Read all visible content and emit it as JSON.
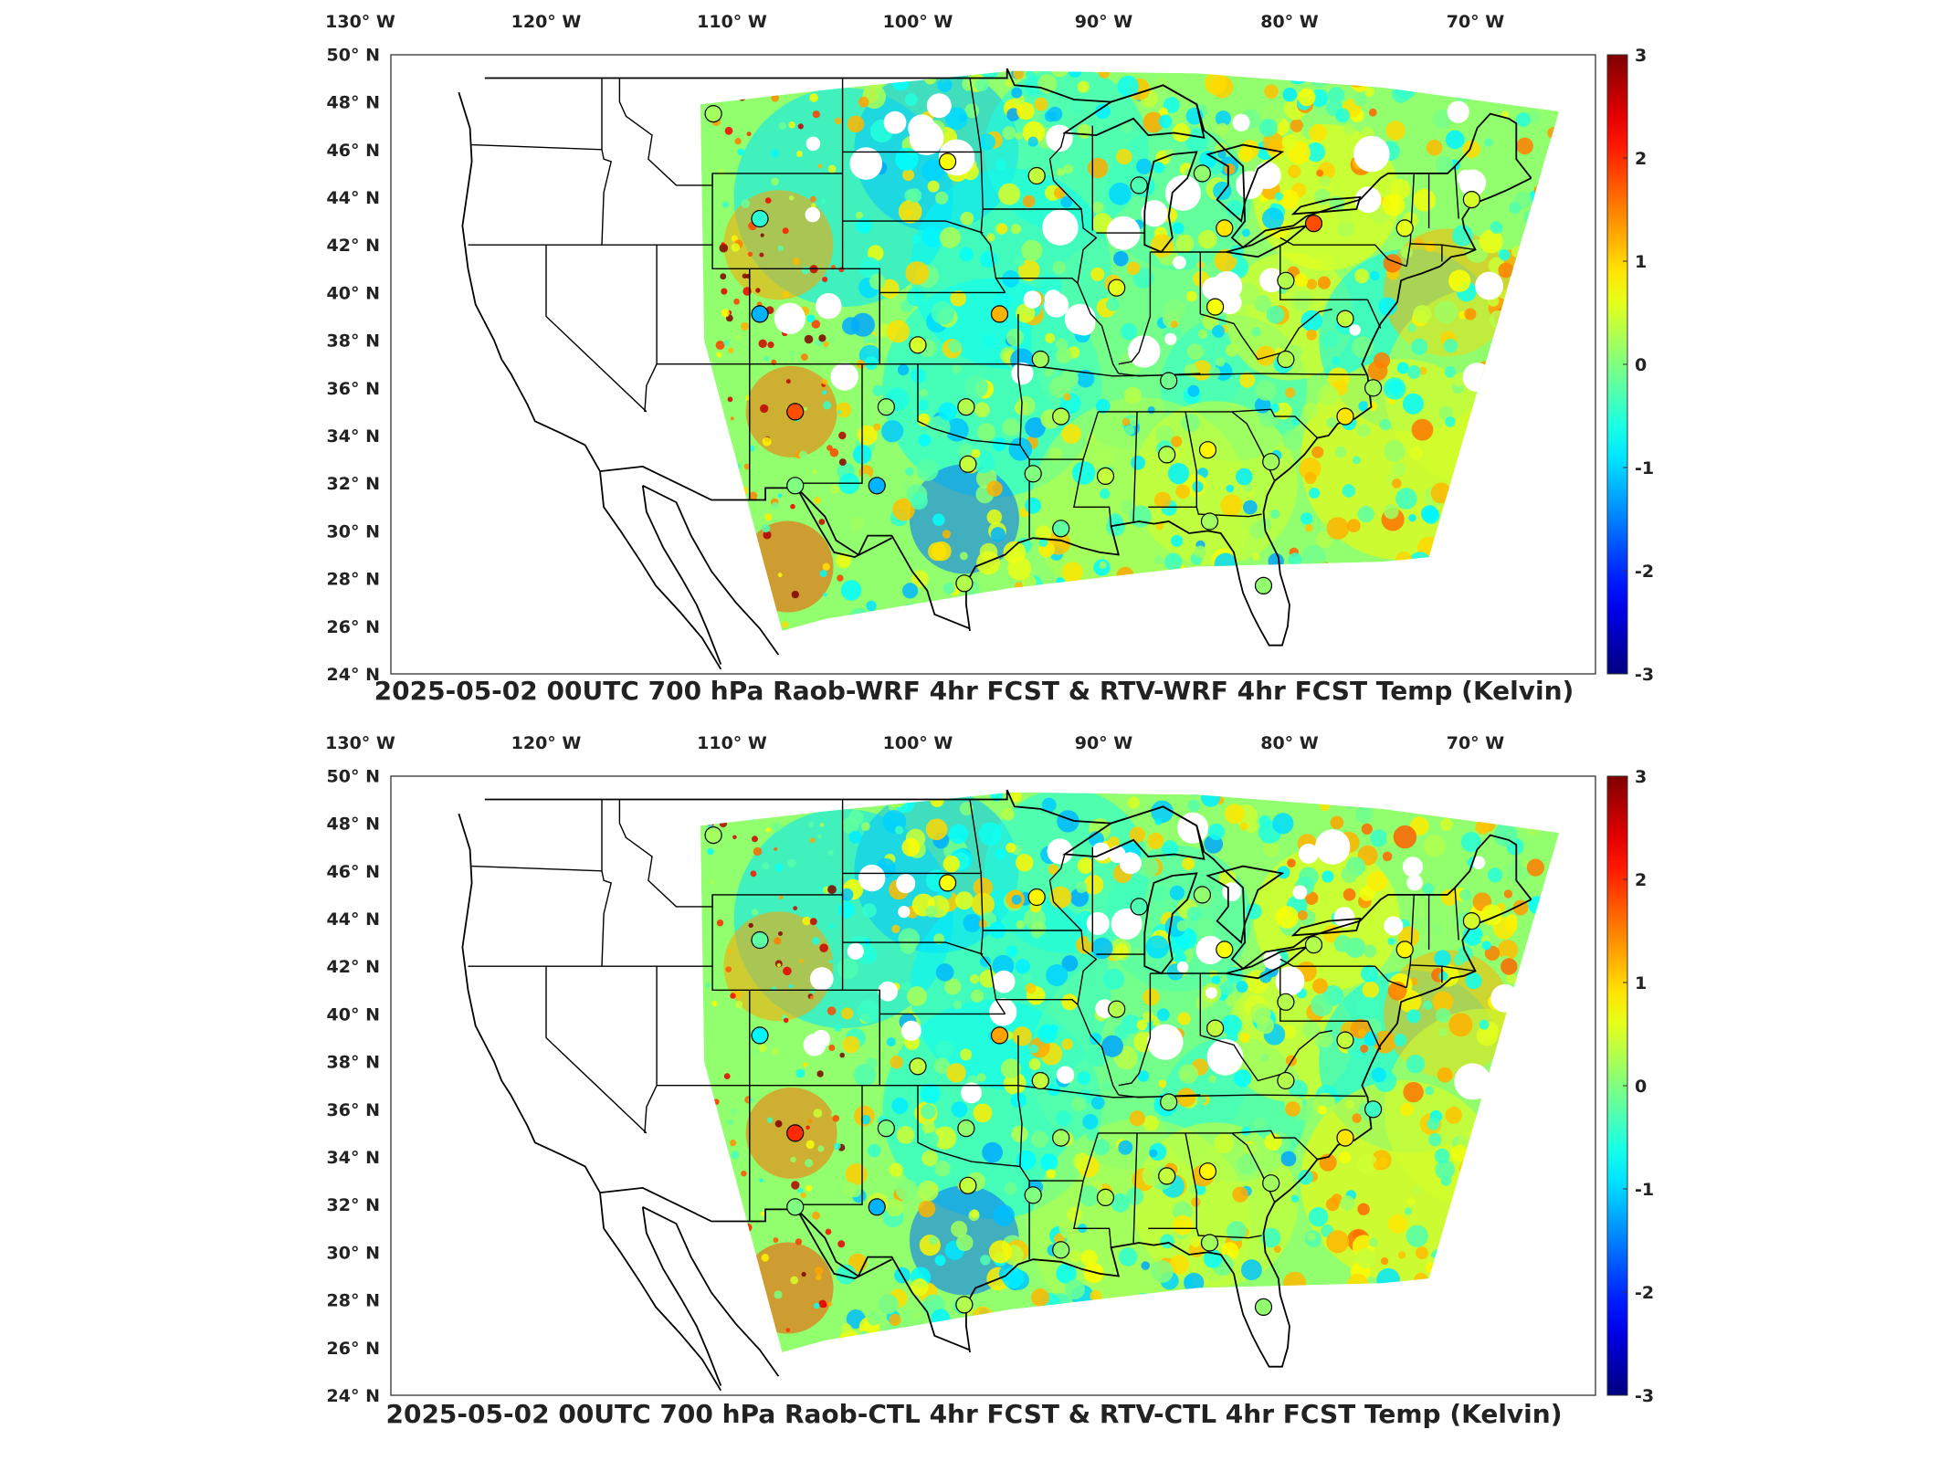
{
  "panels": [
    {
      "title": "2025-05-02 00UTC 700 hPa Raob-WRF 4hr FCST & RTV-WRF 4hr FCST Temp (Kelvin)",
      "seed": 11,
      "stations": [
        {
          "lon": -111.0,
          "lat": 47.5,
          "v": 0.2
        },
        {
          "lon": -98.4,
          "lat": 45.5,
          "v": 0.7
        },
        {
          "lon": -93.6,
          "lat": 44.9,
          "v": 0.4
        },
        {
          "lon": -108.5,
          "lat": 43.1,
          "v": -0.5
        },
        {
          "lon": -88.1,
          "lat": 44.5,
          "v": -0.3
        },
        {
          "lon": -84.7,
          "lat": 45.0,
          "v": 0.1
        },
        {
          "lon": -83.5,
          "lat": 42.7,
          "v": 0.9
        },
        {
          "lon": -78.7,
          "lat": 42.9,
          "v": 1.8
        },
        {
          "lon": -73.8,
          "lat": 42.7,
          "v": 0.6
        },
        {
          "lon": -70.2,
          "lat": 43.9,
          "v": 0.5
        },
        {
          "lon": -108.5,
          "lat": 39.1,
          "v": -1.2
        },
        {
          "lon": -95.6,
          "lat": 39.1,
          "v": 1.2
        },
        {
          "lon": -89.3,
          "lat": 40.2,
          "v": 0.6
        },
        {
          "lon": -84.0,
          "lat": 39.4,
          "v": 0.7
        },
        {
          "lon": -80.2,
          "lat": 40.5,
          "v": 0.3
        },
        {
          "lon": -77.0,
          "lat": 38.9,
          "v": 0.4
        },
        {
          "lon": -100.0,
          "lat": 37.8,
          "v": 0.5
        },
        {
          "lon": -93.4,
          "lat": 37.2,
          "v": 0.2
        },
        {
          "lon": -86.5,
          "lat": 36.3,
          "v": -0.1
        },
        {
          "lon": -80.2,
          "lat": 37.2,
          "v": 0.3
        },
        {
          "lon": -75.5,
          "lat": 36.0,
          "v": 0.2
        },
        {
          "lon": -106.6,
          "lat": 35.0,
          "v": 1.8
        },
        {
          "lon": -101.7,
          "lat": 35.2,
          "v": 0.1
        },
        {
          "lon": -97.4,
          "lat": 35.2,
          "v": 0.3
        },
        {
          "lon": -92.3,
          "lat": 34.8,
          "v": 0.3
        },
        {
          "lon": -77.0,
          "lat": 34.8,
          "v": 0.9
        },
        {
          "lon": -97.3,
          "lat": 32.8,
          "v": 0.4
        },
        {
          "lon": -93.8,
          "lat": 32.4,
          "v": 0.0
        },
        {
          "lon": -89.9,
          "lat": 32.3,
          "v": 0.4
        },
        {
          "lon": -86.6,
          "lat": 33.2,
          "v": 0.3
        },
        {
          "lon": -84.4,
          "lat": 33.4,
          "v": 0.8
        },
        {
          "lon": -81.0,
          "lat": 32.9,
          "v": 0.2
        },
        {
          "lon": -106.6,
          "lat": 31.9,
          "v": 0.0
        },
        {
          "lon": -102.2,
          "lat": 31.9,
          "v": -1.2
        },
        {
          "lon": -92.3,
          "lat": 30.1,
          "v": -0.2
        },
        {
          "lon": -84.3,
          "lat": 30.4,
          "v": 0.2
        },
        {
          "lon": -97.5,
          "lat": 27.8,
          "v": 0.3
        },
        {
          "lon": -81.4,
          "lat": 27.7,
          "v": 0.1
        }
      ]
    },
    {
      "title": "2025-05-02 00UTC 700 hPa Raob-CTL 4hr FCST & RTV-CTL 4hr FCST Temp (Kelvin)",
      "seed": 29,
      "stations": [
        {
          "lon": -111.0,
          "lat": 47.5,
          "v": 0.2
        },
        {
          "lon": -98.4,
          "lat": 45.5,
          "v": 0.7
        },
        {
          "lon": -93.6,
          "lat": 44.9,
          "v": 0.8
        },
        {
          "lon": -108.5,
          "lat": 43.1,
          "v": -0.2
        },
        {
          "lon": -88.1,
          "lat": 44.5,
          "v": -0.3
        },
        {
          "lon": -84.7,
          "lat": 45.0,
          "v": 0.1
        },
        {
          "lon": -83.5,
          "lat": 42.7,
          "v": 0.7
        },
        {
          "lon": -78.7,
          "lat": 42.9,
          "v": 0.3
        },
        {
          "lon": -73.8,
          "lat": 42.7,
          "v": 0.8
        },
        {
          "lon": -70.2,
          "lat": 43.9,
          "v": 0.5
        },
        {
          "lon": -108.5,
          "lat": 39.1,
          "v": -0.8
        },
        {
          "lon": -95.6,
          "lat": 39.1,
          "v": 1.3
        },
        {
          "lon": -89.3,
          "lat": 40.2,
          "v": 0.3
        },
        {
          "lon": -84.0,
          "lat": 39.4,
          "v": 0.4
        },
        {
          "lon": -80.2,
          "lat": 40.5,
          "v": 0.3
        },
        {
          "lon": -77.0,
          "lat": 38.9,
          "v": 0.4
        },
        {
          "lon": -100.0,
          "lat": 37.8,
          "v": 0.4
        },
        {
          "lon": -93.4,
          "lat": 37.2,
          "v": 0.4
        },
        {
          "lon": -86.5,
          "lat": 36.3,
          "v": 0.1
        },
        {
          "lon": -80.2,
          "lat": 37.2,
          "v": 0.3
        },
        {
          "lon": -75.5,
          "lat": 36.0,
          "v": -0.4
        },
        {
          "lon": -106.6,
          "lat": 35.0,
          "v": 2.0
        },
        {
          "lon": -101.7,
          "lat": 35.2,
          "v": 0.0
        },
        {
          "lon": -97.4,
          "lat": 35.2,
          "v": 0.1
        },
        {
          "lon": -92.3,
          "lat": 34.8,
          "v": 0.2
        },
        {
          "lon": -77.0,
          "lat": 34.8,
          "v": 0.9
        },
        {
          "lon": -97.3,
          "lat": 32.8,
          "v": 0.4
        },
        {
          "lon": -93.8,
          "lat": 32.4,
          "v": 0.0
        },
        {
          "lon": -89.9,
          "lat": 32.3,
          "v": 0.3
        },
        {
          "lon": -86.6,
          "lat": 33.2,
          "v": 0.4
        },
        {
          "lon": -84.4,
          "lat": 33.4,
          "v": 0.8
        },
        {
          "lon": -81.0,
          "lat": 32.9,
          "v": 0.2
        },
        {
          "lon": -106.6,
          "lat": 31.9,
          "v": 0.0
        },
        {
          "lon": -102.2,
          "lat": 31.9,
          "v": -1.2
        },
        {
          "lon": -92.3,
          "lat": 30.1,
          "v": 0.1
        },
        {
          "lon": -84.3,
          "lat": 30.4,
          "v": 0.2
        },
        {
          "lon": -97.5,
          "lat": 27.8,
          "v": 0.3
        },
        {
          "lon": -81.4,
          "lat": 27.7,
          "v": 0.1
        }
      ]
    }
  ],
  "lon_ticks": [
    {
      "lon": -130,
      "label": "130° W"
    },
    {
      "lon": -120,
      "label": "120° W"
    },
    {
      "lon": -110,
      "label": "110° W"
    },
    {
      "lon": -100,
      "label": "100° W"
    },
    {
      "lon": -90,
      "label": "90° W"
    },
    {
      "lon": -80,
      "label": "80° W"
    },
    {
      "lon": -70,
      "label": "70° W"
    }
  ],
  "lat_ticks": [
    {
      "lat": 50,
      "label": "50° N"
    },
    {
      "lat": 48,
      "label": "48° N"
    },
    {
      "lat": 46,
      "label": "46° N"
    },
    {
      "lat": 44,
      "label": "44° N"
    },
    {
      "lat": 42,
      "label": "42° N"
    },
    {
      "lat": 40,
      "label": "40° N"
    },
    {
      "lat": 38,
      "label": "38° N"
    },
    {
      "lat": 36,
      "label": "36° N"
    },
    {
      "lat": 34,
      "label": "34° N"
    },
    {
      "lat": 32,
      "label": "32° N"
    },
    {
      "lat": 30,
      "label": "30° N"
    },
    {
      "lat": 28,
      "label": "28° N"
    },
    {
      "lat": 26,
      "label": "26° N"
    },
    {
      "lat": 24,
      "label": "24° N"
    }
  ],
  "colorbar": {
    "min": -3,
    "max": 3,
    "ticks": [
      {
        "v": 3,
        "label": "3"
      },
      {
        "v": 2,
        "label": "2"
      },
      {
        "v": 1,
        "label": "1"
      },
      {
        "v": 0,
        "label": "0"
      },
      {
        "v": -1,
        "label": "-1"
      },
      {
        "v": -2,
        "label": "-2"
      },
      {
        "v": -3,
        "label": "-3"
      }
    ]
  }
}
